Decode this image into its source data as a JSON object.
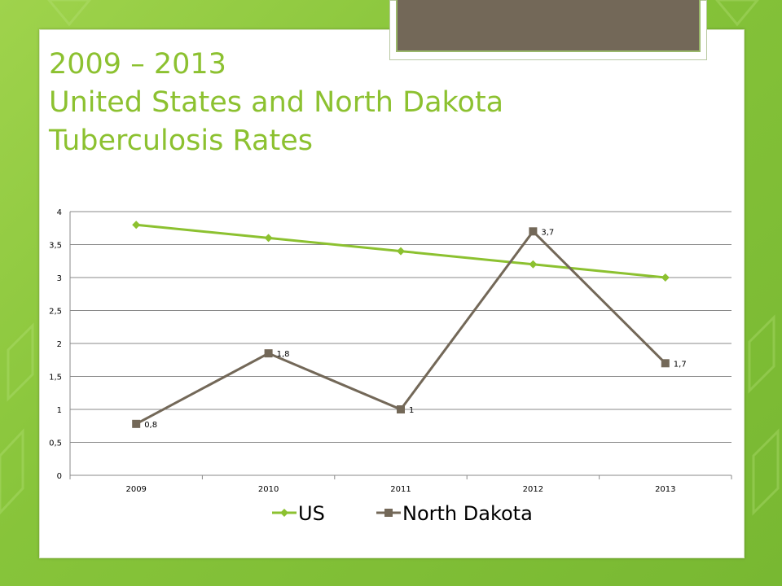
{
  "slide": {
    "title_line1": "2009 – 2013",
    "title_line2": "United States and North Dakota",
    "title_line3": "Tuberculosis Rates"
  },
  "colors": {
    "us": "#8cc130",
    "nd": "#736858",
    "title": "#8cc130"
  },
  "chart_data": {
    "type": "line",
    "categories": [
      "2009",
      "2010",
      "2011",
      "2012",
      "2013"
    ],
    "series": [
      {
        "name": "US",
        "values": [
          3.8,
          3.6,
          3.4,
          3.2,
          3.0
        ],
        "marker": "diamond",
        "color": "#8cc130",
        "labels": null
      },
      {
        "name": "North Dakota",
        "values": [
          0.78,
          1.85,
          1.0,
          3.7,
          1.7
        ],
        "marker": "square",
        "color": "#736858",
        "labels": [
          "0,8",
          "1,8",
          "1",
          "3,7",
          "1,7"
        ]
      }
    ],
    "ylim": [
      0,
      4
    ],
    "yticks": [
      "0",
      "0,5",
      "1",
      "1,5",
      "2",
      "2,5",
      "3",
      "3,5",
      "4"
    ],
    "ytick_values": [
      0,
      0.5,
      1,
      1.5,
      2,
      2.5,
      3,
      3.5,
      4
    ],
    "grid": true,
    "legend": "bottom"
  }
}
